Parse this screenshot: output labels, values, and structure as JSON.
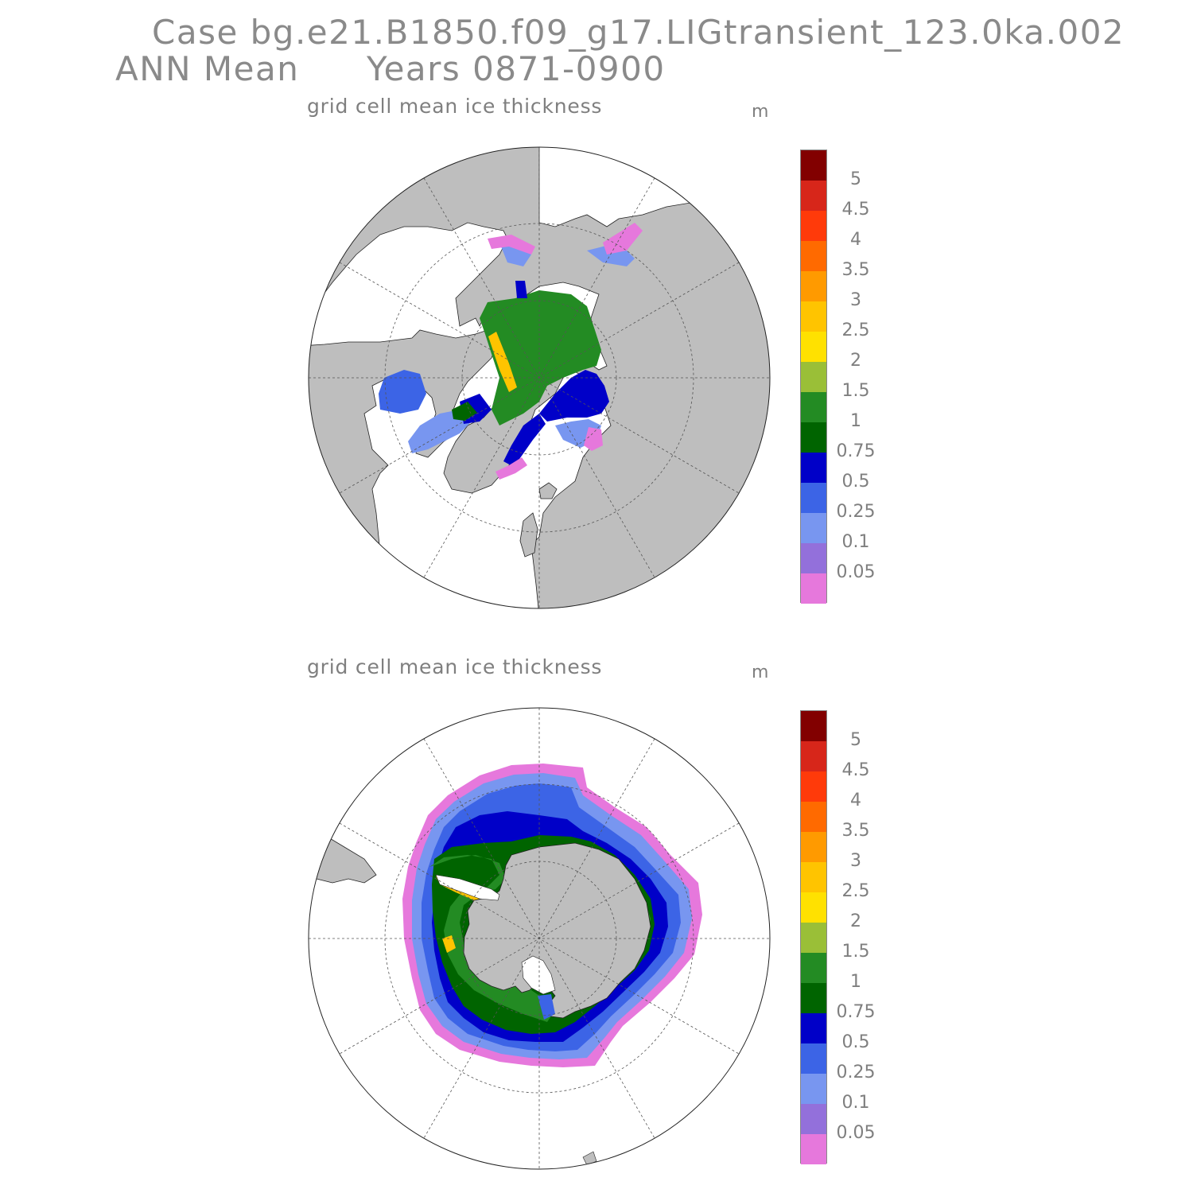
{
  "header": {
    "line1": "Case bg.e21.B1850.f09_g17.LIGtransient_123.0ka.002",
    "season": "ANN Mean",
    "years": "Years 0871-0900"
  },
  "panels": [
    {
      "id": "north",
      "title": "grid cell mean ice thickness",
      "unit": "m",
      "hemisphere": "Northern Hemisphere polar stereographic"
    },
    {
      "id": "south",
      "title": "grid cell mean ice thickness",
      "unit": "m",
      "hemisphere": "Southern Hemisphere polar stereographic"
    }
  ],
  "colorbar": {
    "labels": [
      "5",
      "4.5",
      "4",
      "3.5",
      "3",
      "2.5",
      "2",
      "1.5",
      "1",
      "0.75",
      "0.5",
      "0.25",
      "0.1",
      "0.05"
    ],
    "colors_top_to_bottom": [
      "#820000",
      "#d7261a",
      "#ff3a0a",
      "#ff6a00",
      "#ff9a00",
      "#ffc400",
      "#ffe100",
      "#9abf37",
      "#238b23",
      "#006400",
      "#0000c8",
      "#3c64e6",
      "#7896f0",
      "#9370db",
      "#e678dc"
    ]
  },
  "colors": {
    "land": "#bebebe",
    "ocean": "#ffffff",
    "grid": "#555555"
  }
}
